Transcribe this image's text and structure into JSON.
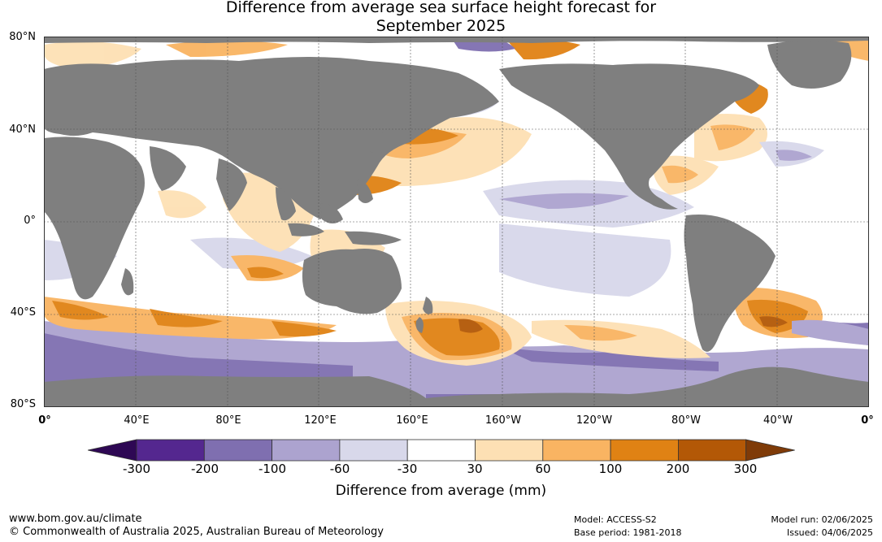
{
  "title_line1": "Difference from average sea surface height forecast for",
  "title_line2": "September 2025",
  "lat_labels": [
    "80°N",
    "40°N",
    "0°",
    "40°S",
    "80°S"
  ],
  "lon_labels": [
    "0°",
    "40°E",
    "80°E",
    "120°E",
    "160°E",
    "160°W",
    "120°W",
    "80°W",
    "40°W",
    "0°"
  ],
  "colorbar": {
    "title": "Difference from average (mm)",
    "ticks": [
      "-300",
      "-200",
      "-100",
      "-60",
      "-30",
      "30",
      "60",
      "100",
      "200",
      "300"
    ],
    "colors": [
      "#2e0854",
      "#54278f",
      "#7f6fb0",
      "#aca3cf",
      "#d8d8ea",
      "#ffffff",
      "#fde0b4",
      "#f9b462",
      "#e08214",
      "#b35806",
      "#7f3b08"
    ]
  },
  "footer": {
    "url": "www.bom.gov.au/climate",
    "copyright": "© Commonwealth of Australia 2025, Australian Bureau of Meteorology",
    "model": "Model: ACCESS-S2",
    "base_period": "Base period: 1981-2018",
    "model_run": "Model run: 02/06/2025",
    "issued": "Issued: 04/06/2025"
  }
}
